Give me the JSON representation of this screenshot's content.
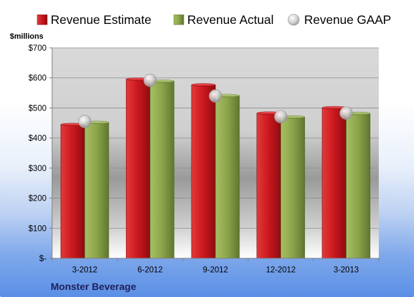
{
  "chart_data": {
    "type": "bar",
    "title": "",
    "unit_label": "$millions",
    "footer": "Monster Beverage",
    "categories": [
      "3-2012",
      "6-2012",
      "9-2012",
      "12-2012",
      "3-2013"
    ],
    "series": [
      {
        "name": "Revenue Estimate",
        "type": "bar",
        "color": "#c9171e",
        "values": [
          445,
          596,
          577,
          483,
          501
        ]
      },
      {
        "name": "Revenue Actual",
        "type": "bar",
        "color": "#8ba44a",
        "values": [
          452,
          589,
          541,
          470,
          482
        ]
      },
      {
        "name": "Revenue GAAP",
        "type": "scatter",
        "color": "#c8c8c8",
        "values": [
          455,
          592,
          540,
          471,
          483
        ]
      }
    ],
    "y_ticks": [
      "$-",
      "$100",
      "$200",
      "$300",
      "$400",
      "$500",
      "$600",
      "$700"
    ],
    "ylim": [
      0,
      700
    ],
    "grid": true,
    "legend": "top"
  }
}
